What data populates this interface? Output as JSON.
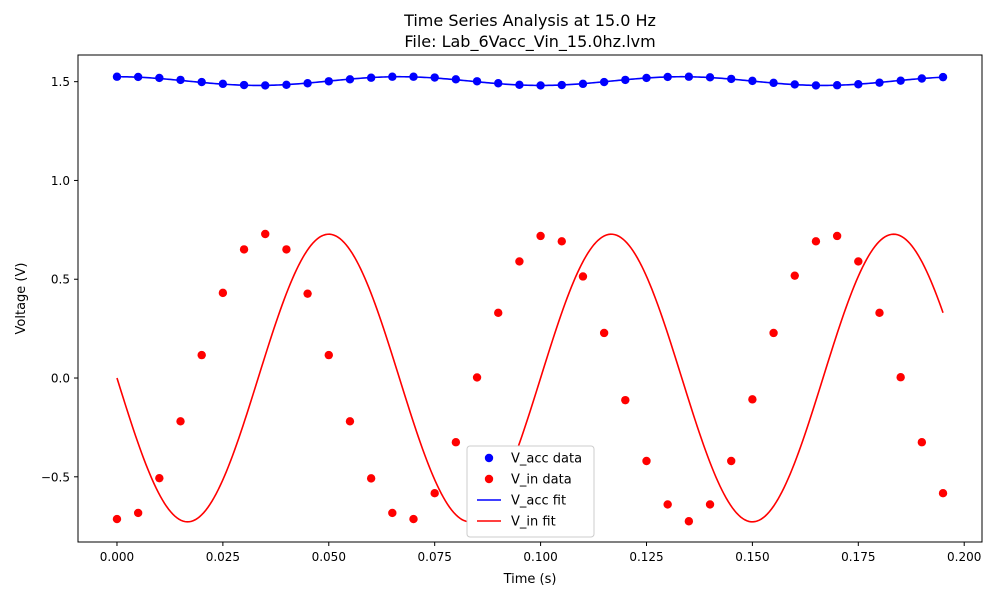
{
  "chart_data": {
    "type": "line",
    "title_line1": "Time Series Analysis at 15.0 Hz",
    "title_line2": "File: Lab_6Vacc_Vin_15.0hz.lvm",
    "xlabel": "Time (s)",
    "ylabel": "Voltage (V)",
    "xlim": [
      -0.0092,
      0.2042
    ],
    "ylim": [
      -0.83,
      1.635
    ],
    "xticks": [
      0.0,
      0.025,
      0.05,
      0.075,
      0.1,
      0.125,
      0.15,
      0.175,
      0.2
    ],
    "xtick_labels": [
      "0.000",
      "0.025",
      "0.050",
      "0.075",
      "0.100",
      "0.125",
      "0.150",
      "0.175",
      "0.200"
    ],
    "yticks": [
      -0.5,
      0.0,
      0.5,
      1.0,
      1.5
    ],
    "ytick_labels": [
      "−0.5",
      "0.0",
      "0.5",
      "1.0",
      "1.5"
    ],
    "grid": false,
    "legend_position": "lower-center",
    "x": [
      0.0,
      0.005,
      0.01,
      0.015,
      0.02,
      0.025,
      0.03,
      0.035,
      0.04,
      0.045,
      0.05,
      0.055,
      0.06,
      0.065,
      0.07,
      0.075,
      0.08,
      0.085,
      0.09,
      0.095,
      0.1,
      0.105,
      0.11,
      0.115,
      0.12,
      0.125,
      0.13,
      0.135,
      0.14,
      0.145,
      0.15,
      0.155,
      0.16,
      0.165,
      0.17,
      0.175,
      0.18,
      0.185,
      0.19,
      0.195
    ],
    "series": [
      {
        "name": "V_acc data",
        "kind": "points",
        "color": "#0000ff",
        "values": [
          1.525,
          1.524,
          1.519,
          1.509,
          1.498,
          1.489,
          1.483,
          1.481,
          1.484,
          1.492,
          1.502,
          1.512,
          1.52,
          1.525,
          1.525,
          1.521,
          1.512,
          1.502,
          1.492,
          1.484,
          1.481,
          1.483,
          1.489,
          1.498,
          1.509,
          1.519,
          1.524,
          1.525,
          1.522,
          1.514,
          1.504,
          1.494,
          1.486,
          1.481,
          1.482,
          1.487,
          1.495,
          1.505,
          1.516,
          1.523
        ]
      },
      {
        "name": "V_in data",
        "kind": "points",
        "color": "#ff0000",
        "values": [
          -0.714,
          -0.683,
          -0.507,
          -0.219,
          0.116,
          0.431,
          0.651,
          0.729,
          0.651,
          0.427,
          0.116,
          -0.219,
          -0.508,
          -0.683,
          -0.714,
          -0.583,
          -0.325,
          0.003,
          0.33,
          0.59,
          0.719,
          0.692,
          0.514,
          0.228,
          -0.112,
          -0.42,
          -0.64,
          -0.725,
          -0.64,
          -0.42,
          -0.108,
          0.228,
          0.518,
          0.692,
          0.719,
          0.59,
          0.33,
          0.004,
          -0.325,
          -0.583
        ]
      },
      {
        "name": "V_acc fit",
        "kind": "line",
        "color": "#0000ff",
        "fit": {
          "offset": 1.503,
          "amplitude": 0.022,
          "frequency_hz": 15.0,
          "phase_rad": 1.5708
        }
      },
      {
        "name": "V_in fit",
        "kind": "line",
        "color": "#ff0000",
        "fit": {
          "offset": 0.0,
          "amplitude": 0.728,
          "frequency_hz": 15.0,
          "phase_rad": 3.1416
        }
      }
    ]
  }
}
